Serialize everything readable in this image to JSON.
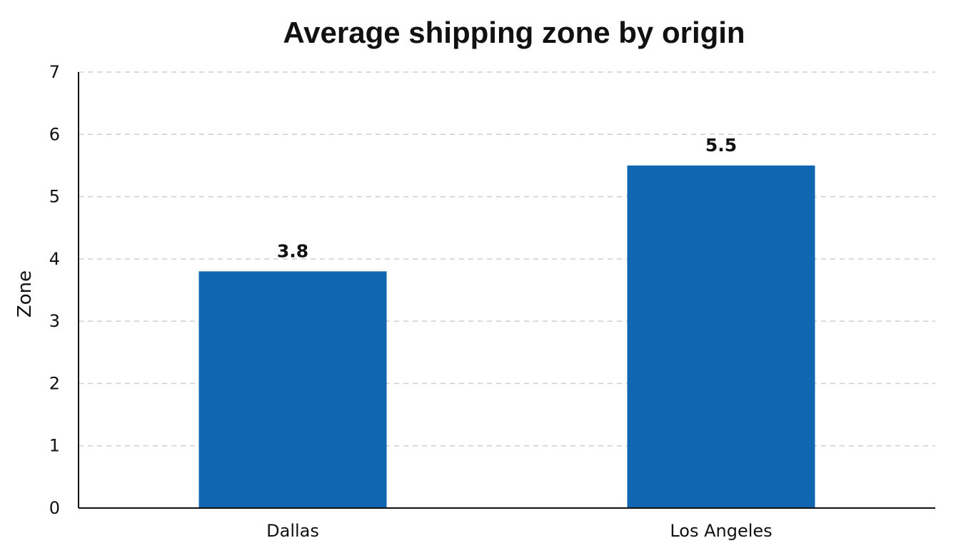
{
  "chart_data": {
    "type": "bar",
    "title": "Average shipping zone by origin",
    "xlabel": "",
    "ylabel": "Zone",
    "categories": [
      "Dallas",
      "Los Angeles"
    ],
    "values": [
      3.8,
      5.5
    ],
    "data_labels": [
      "3.8",
      "5.5"
    ],
    "ylim": [
      0,
      7
    ],
    "yticks": [
      "0",
      "1",
      "2",
      "3",
      "4",
      "5",
      "6",
      "7"
    ],
    "grid": true,
    "legend": "none",
    "colors": {
      "bar": "#1166b1",
      "axis": "#111111",
      "grid": "#cfcfcf"
    }
  }
}
